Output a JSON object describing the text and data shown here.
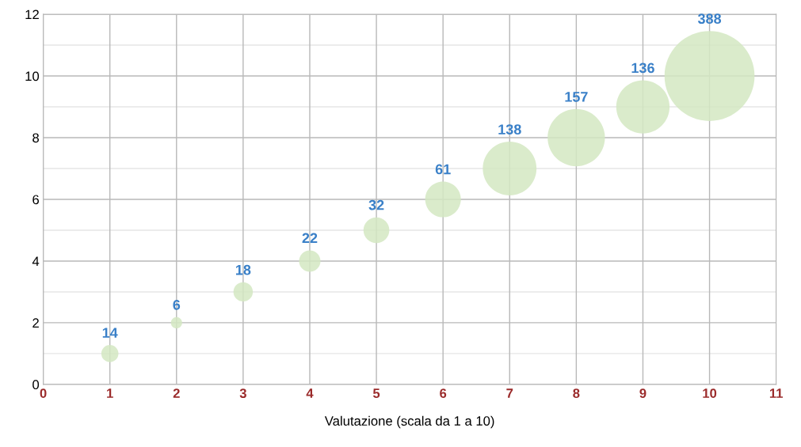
{
  "chart_data": {
    "type": "bubble",
    "xlabel": "Valutazione (scala da 1 a 10)",
    "x": [
      1,
      2,
      3,
      4,
      5,
      6,
      7,
      8,
      9,
      10
    ],
    "values": [
      1,
      2,
      3,
      4,
      5,
      6,
      7,
      8,
      9,
      10
    ],
    "sizes": [
      14,
      6,
      18,
      22,
      32,
      61,
      138,
      157,
      136,
      388
    ],
    "value_labels": [
      "14",
      "6",
      "18",
      "22",
      "32",
      "61",
      "138",
      "157",
      "136",
      "388"
    ],
    "color": "#d3e8c2",
    "xlim": [
      0,
      11
    ],
    "xticks": [
      0,
      1,
      2,
      3,
      4,
      5,
      6,
      7,
      8,
      9,
      10,
      11
    ],
    "ylim": [
      0,
      12
    ],
    "yticks": [
      0,
      2,
      4,
      6,
      8,
      10,
      12
    ],
    "grid": true,
    "legend": false
  }
}
